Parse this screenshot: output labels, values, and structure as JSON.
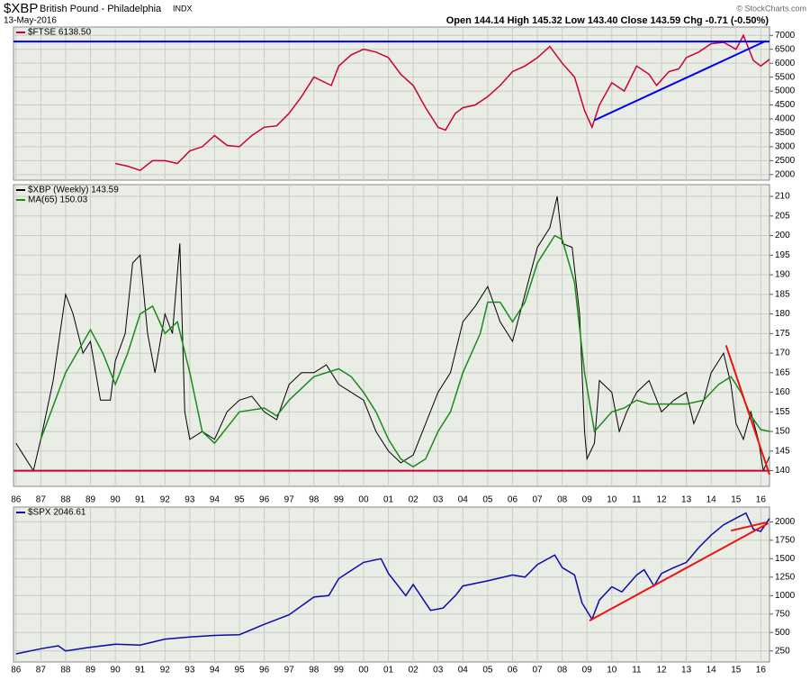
{
  "header": {
    "symbol": "$XBP",
    "name": "British Pound - Philadelphia",
    "exchange": "INDX",
    "date": "13-May-2016",
    "quote": "Open 144.14 High 145.32 Low 143.40 Close 143.59 Chg -0.71 (-0.50%)",
    "copyright": "© StockCharts.com"
  },
  "chart_data": [
    {
      "type": "line",
      "xlim": [
        1985.9,
        2016.35
      ],
      "ylim": [
        1800,
        7300
      ],
      "yticks": [
        2000,
        2500,
        3000,
        3500,
        4000,
        4500,
        5000,
        5500,
        6000,
        6500,
        7000
      ],
      "grid": true,
      "series": [
        {
          "name": "$FTSE 6138.50",
          "color": "#cc0033",
          "x": [
            1990,
            1990.5,
            1991,
            1991.5,
            1992,
            1992.5,
            1993,
            1993.5,
            1994,
            1994.5,
            1995,
            1995.5,
            1996,
            1996.5,
            1997,
            1997.5,
            1998,
            1998.7,
            1999,
            1999.5,
            2000,
            2000.5,
            2001,
            2001.5,
            2002,
            2002.5,
            2003,
            2003.3,
            2003.7,
            2004,
            2004.5,
            2005,
            2005.5,
            2006,
            2006.5,
            2007,
            2007.5,
            2008,
            2008.5,
            2008.9,
            2009.2,
            2009.5,
            2010,
            2010.5,
            2011,
            2011.5,
            2011.8,
            2012.3,
            2012.7,
            2013,
            2013.5,
            2014,
            2014.5,
            2015,
            2015.3,
            2015.7,
            2016,
            2016.35
          ],
          "values": [
            2400,
            2300,
            2150,
            2500,
            2500,
            2400,
            2850,
            3000,
            3400,
            3050,
            3000,
            3400,
            3700,
            3750,
            4200,
            4800,
            5500,
            5200,
            5900,
            6300,
            6500,
            6400,
            6200,
            5600,
            5200,
            4400,
            3700,
            3600,
            4200,
            4400,
            4500,
            4800,
            5200,
            5700,
            5900,
            6200,
            6600,
            6000,
            5500,
            4300,
            3700,
            4500,
            5300,
            5000,
            5900,
            5600,
            5200,
            5700,
            5800,
            6200,
            6400,
            6700,
            6750,
            6500,
            7000,
            6100,
            5900,
            6138.5
          ]
        }
      ],
      "lines": [
        {
          "color": "#0000ee",
          "x": [
            1985.9,
            2016.35
          ],
          "values": [
            6780,
            6780
          ]
        },
        {
          "color": "#0000ee",
          "x": [
            2009.3,
            2016.2
          ],
          "values": [
            3950,
            6800
          ]
        }
      ]
    },
    {
      "type": "line",
      "xlim": [
        1985.9,
        2016.35
      ],
      "ylim": [
        136,
        213
      ],
      "yticks": [
        140,
        145,
        150,
        155,
        160,
        165,
        170,
        175,
        180,
        185,
        190,
        195,
        200,
        205,
        210
      ],
      "grid": true,
      "xticks": [
        {
          "value": 1986,
          "label": "86"
        },
        {
          "value": 1987,
          "label": "87"
        },
        {
          "value": 1988,
          "label": "88"
        },
        {
          "value": 1989,
          "label": "89"
        },
        {
          "value": 1990,
          "label": "90"
        },
        {
          "value": 1991,
          "label": "91"
        },
        {
          "value": 1992,
          "label": "92"
        },
        {
          "value": 1993,
          "label": "93"
        },
        {
          "value": 1994,
          "label": "94"
        },
        {
          "value": 1995,
          "label": "95"
        },
        {
          "value": 1996,
          "label": "96"
        },
        {
          "value": 1997,
          "label": "97"
        },
        {
          "value": 1998,
          "label": "98"
        },
        {
          "value": 1999,
          "label": "99"
        },
        {
          "value": 2000,
          "label": "00"
        },
        {
          "value": 2001,
          "label": "01"
        },
        {
          "value": 2002,
          "label": "02"
        },
        {
          "value": 2003,
          "label": "03"
        },
        {
          "value": 2004,
          "label": "04"
        },
        {
          "value": 2005,
          "label": "05"
        },
        {
          "value": 2006,
          "label": "06"
        },
        {
          "value": 2007,
          "label": "07"
        },
        {
          "value": 2008,
          "label": "08"
        },
        {
          "value": 2009,
          "label": "09"
        },
        {
          "value": 2010,
          "label": "10"
        },
        {
          "value": 2011,
          "label": "11"
        },
        {
          "value": 2012,
          "label": "12"
        },
        {
          "value": 2013,
          "label": "13"
        },
        {
          "value": 2014,
          "label": "14"
        },
        {
          "value": 2015,
          "label": "15"
        },
        {
          "value": 2016,
          "label": "16"
        }
      ],
      "series": [
        {
          "name": "$XBP (Weekly) 143.59",
          "color": "#000000",
          "x": [
            1986,
            1986.3,
            1986.7,
            1987,
            1987.5,
            1988,
            1988.3,
            1988.7,
            1989,
            1989.4,
            1989.8,
            1990,
            1990.4,
            1990.7,
            1991,
            1991.3,
            1991.6,
            1992,
            1992.3,
            1992.6,
            1992.8,
            1993,
            1993.5,
            1994,
            1994.5,
            1995,
            1995.5,
            1996,
            1996.5,
            1997,
            1997.5,
            1998,
            1998.5,
            1999,
            1999.5,
            2000,
            2000.5,
            2001,
            2001.5,
            2002,
            2002.5,
            2003,
            2003.5,
            2004,
            2004.5,
            2005,
            2005.5,
            2006,
            2006.5,
            2007,
            2007.5,
            2007.8,
            2008,
            2008.4,
            2008.7,
            2008.9,
            2009,
            2009.3,
            2009.5,
            2010,
            2010.3,
            2010.6,
            2011,
            2011.5,
            2012,
            2012.5,
            2013,
            2013.3,
            2013.7,
            2014,
            2014.5,
            2014.8,
            2015,
            2015.3,
            2015.6,
            2015.9,
            2016.1,
            2016.35
          ],
          "values": [
            147,
            144,
            140,
            148,
            163,
            185,
            180,
            170,
            173,
            158,
            158,
            168,
            175,
            193,
            195,
            175,
            165,
            180,
            175,
            198,
            155,
            148,
            150,
            148,
            155,
            158,
            159,
            155,
            153,
            162,
            165,
            165,
            167,
            162,
            160,
            158,
            150,
            145,
            142,
            144,
            152,
            160,
            165,
            178,
            182,
            187,
            178,
            173,
            185,
            197,
            202,
            210,
            198,
            197,
            180,
            150,
            143,
            147,
            163,
            160,
            150,
            155,
            160,
            163,
            155,
            158,
            160,
            152,
            158,
            165,
            170,
            162,
            152,
            148,
            155,
            148,
            140,
            143.59
          ]
        },
        {
          "name": "MA(65) 150.03",
          "color": "#1a8a1a",
          "x": [
            1987,
            1988,
            1989,
            1989.5,
            1990,
            1990.5,
            1991,
            1991.5,
            1992,
            1992.5,
            1993,
            1993.5,
            1994,
            1995,
            1996,
            1996.5,
            1997,
            1998,
            1999,
            1999.5,
            2000,
            2000.5,
            2001,
            2001.5,
            2002,
            2002.5,
            2003,
            2003.5,
            2004,
            2004.7,
            2005,
            2005.5,
            2006,
            2006.5,
            2007,
            2007.7,
            2008,
            2008.5,
            2008.9,
            2009.3,
            2010,
            2010.5,
            2011,
            2011.5,
            2012,
            2013,
            2013.7,
            2014.3,
            2014.8,
            2015.2,
            2015.6,
            2016,
            2016.35
          ],
          "values": [
            148,
            165,
            176,
            170,
            162,
            170,
            180,
            182,
            175,
            178,
            165,
            150,
            147,
            155,
            156,
            154,
            158,
            164,
            166,
            164,
            160,
            155,
            148,
            143,
            141,
            143,
            150,
            155,
            165,
            175,
            183,
            183,
            178,
            183,
            193,
            200,
            199,
            188,
            165,
            150,
            155,
            156,
            158,
            157,
            157,
            157,
            158,
            162,
            164,
            160,
            154,
            150.5,
            150.03
          ]
        }
      ],
      "lines": [
        {
          "color": "#cc0033",
          "x": [
            1985.9,
            2016.35
          ],
          "values": [
            140,
            140
          ]
        },
        {
          "color": "#ee1111",
          "x": [
            2014.6,
            2016.35
          ],
          "values": [
            172,
            139
          ]
        }
      ]
    },
    {
      "type": "line",
      "xlim": [
        1985.9,
        2016.35
      ],
      "ylim": [
        100,
        2200
      ],
      "yticks": [
        250,
        500,
        750,
        1000,
        1250,
        1500,
        1750,
        2000
      ],
      "grid": true,
      "xticks": [
        {
          "value": 1986,
          "label": "86"
        },
        {
          "value": 1987,
          "label": "87"
        },
        {
          "value": 1988,
          "label": "88"
        },
        {
          "value": 1989,
          "label": "89"
        },
        {
          "value": 1990,
          "label": "90"
        },
        {
          "value": 1991,
          "label": "91"
        },
        {
          "value": 1992,
          "label": "92"
        },
        {
          "value": 1993,
          "label": "93"
        },
        {
          "value": 1994,
          "label": "94"
        },
        {
          "value": 1995,
          "label": "95"
        },
        {
          "value": 1996,
          "label": "96"
        },
        {
          "value": 1997,
          "label": "97"
        },
        {
          "value": 1998,
          "label": "98"
        },
        {
          "value": 1999,
          "label": "99"
        },
        {
          "value": 2000,
          "label": "00"
        },
        {
          "value": 2001,
          "label": "01"
        },
        {
          "value": 2002,
          "label": "02"
        },
        {
          "value": 2003,
          "label": "03"
        },
        {
          "value": 2004,
          "label": "04"
        },
        {
          "value": 2005,
          "label": "05"
        },
        {
          "value": 2006,
          "label": "06"
        },
        {
          "value": 2007,
          "label": "07"
        },
        {
          "value": 2008,
          "label": "08"
        },
        {
          "value": 2009,
          "label": "09"
        },
        {
          "value": 2010,
          "label": "10"
        },
        {
          "value": 2011,
          "label": "11"
        },
        {
          "value": 2012,
          "label": "12"
        },
        {
          "value": 2013,
          "label": "13"
        },
        {
          "value": 2014,
          "label": "14"
        },
        {
          "value": 2015,
          "label": "15"
        },
        {
          "value": 2016,
          "label": "16"
        }
      ],
      "series": [
        {
          "name": "$SPX 2046.61",
          "color": "#0a0aaa",
          "x": [
            1986,
            1987,
            1987.7,
            1988,
            1989,
            1990,
            1991,
            1992,
            1993,
            1994,
            1995,
            1996,
            1997,
            1998,
            1998.6,
            1999,
            2000,
            2000.7,
            2001,
            2001.7,
            2002,
            2002.7,
            2003.2,
            2003.7,
            2004,
            2005,
            2006,
            2006.5,
            2007,
            2007.7,
            2008,
            2008.5,
            2008.8,
            2009.2,
            2009.5,
            2010,
            2010.4,
            2011,
            2011.3,
            2011.7,
            2012,
            2012.5,
            2013,
            2013.5,
            2014,
            2014.5,
            2015,
            2015.4,
            2015.7,
            2016,
            2016.35
          ],
          "values": [
            210,
            280,
            320,
            250,
            300,
            340,
            330,
            410,
            440,
            460,
            470,
            610,
            740,
            980,
            1000,
            1230,
            1450,
            1500,
            1300,
            1000,
            1150,
            800,
            830,
            1000,
            1130,
            1200,
            1280,
            1250,
            1420,
            1550,
            1380,
            1280,
            900,
            680,
            940,
            1120,
            1050,
            1280,
            1350,
            1130,
            1300,
            1380,
            1450,
            1650,
            1820,
            1960,
            2050,
            2120,
            1900,
            1870,
            2046.61
          ]
        }
      ],
      "lines": [
        {
          "color": "#ee1111",
          "x": [
            2009.1,
            2016.3
          ],
          "values": [
            660,
            1980
          ]
        },
        {
          "color": "#ee1111",
          "x": [
            2014.8,
            2016.2
          ],
          "values": [
            1880,
            1990
          ]
        }
      ]
    }
  ]
}
